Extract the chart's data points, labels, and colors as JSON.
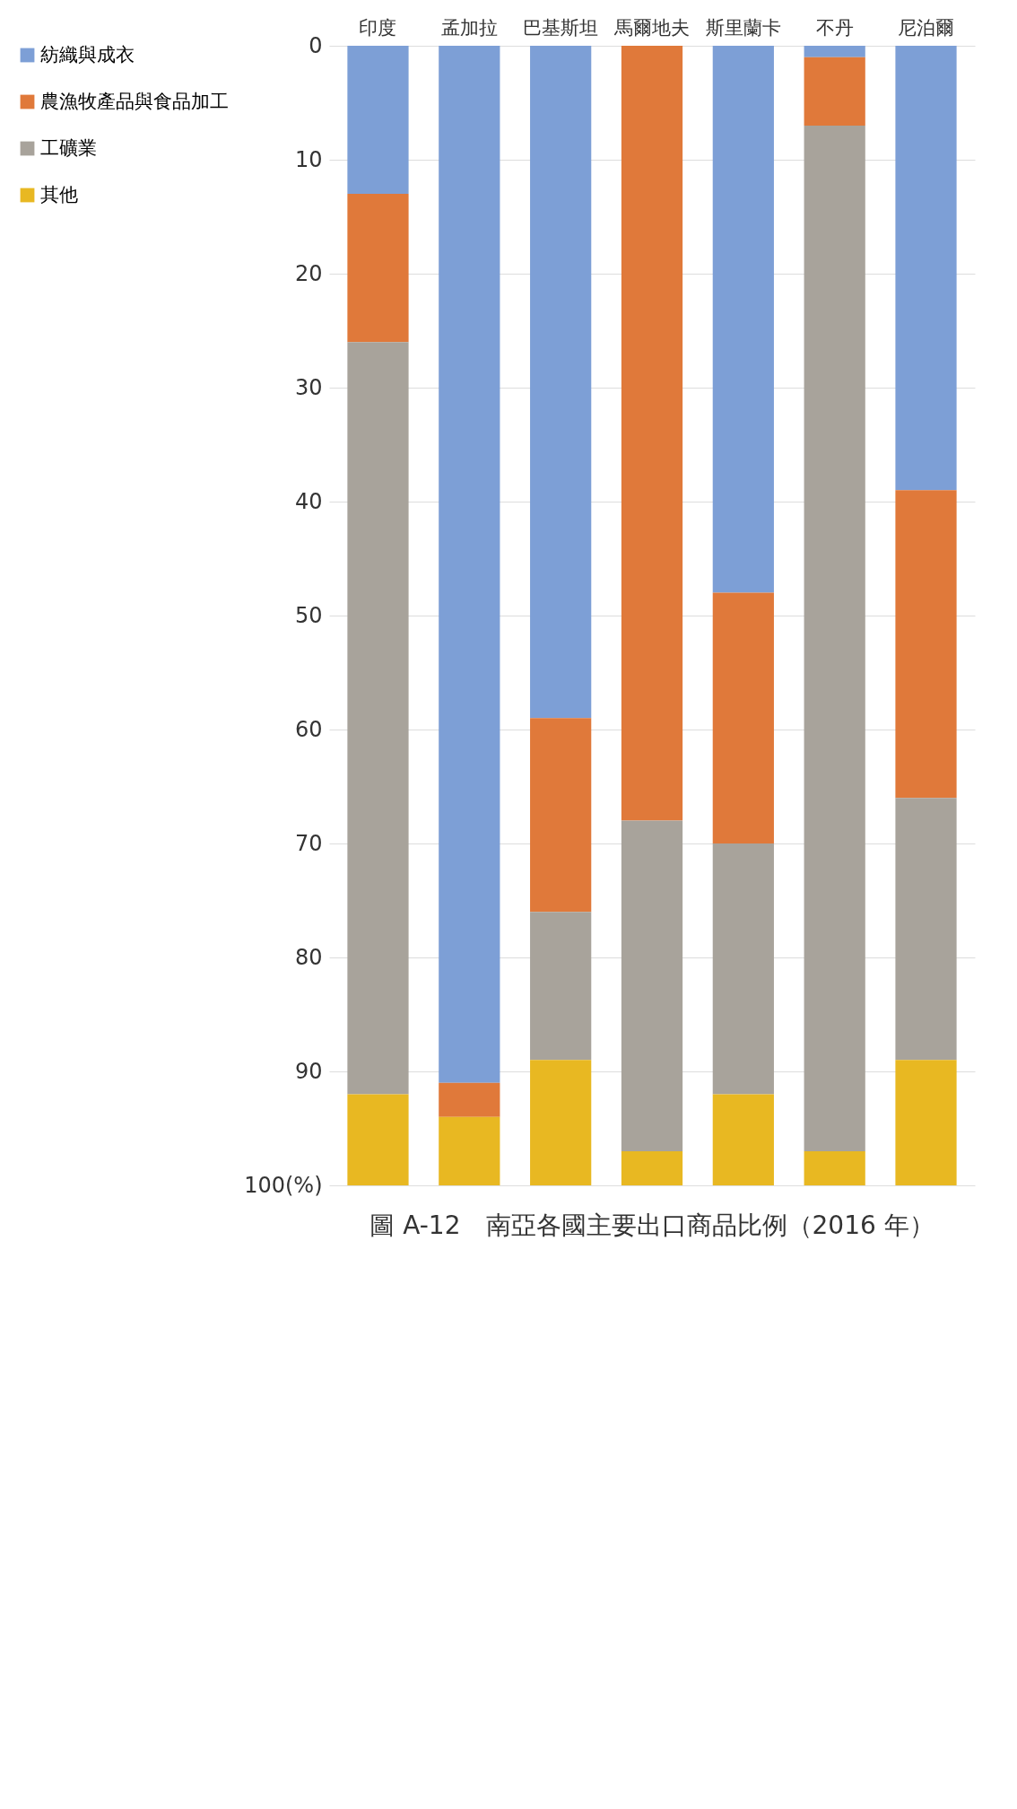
{
  "chart_data": {
    "type": "bar",
    "title": "圖 A-12　南亞各國主要出口商品比例（2016 年）",
    "categories": [
      "印度",
      "孟加拉",
      "巴基斯坦",
      "馬爾地夫",
      "斯里蘭卡",
      "不丹",
      "尼泊爾"
    ],
    "series": [
      {
        "name": "紡織與成衣",
        "color": "#7d9fd6",
        "values": [
          13,
          91,
          59,
          0,
          48,
          1,
          39
        ]
      },
      {
        "name": "農漁牧產品與食品加工",
        "color": "#e0793a",
        "values": [
          13,
          3,
          17,
          68,
          22,
          6,
          27
        ]
      },
      {
        "name": "工礦業",
        "color": "#a8a39b",
        "values": [
          66,
          0,
          13,
          29,
          22,
          90,
          23
        ]
      },
      {
        "name": "其他",
        "color": "#e8b822",
        "values": [
          8,
          6,
          11,
          3,
          8,
          3,
          11
        ]
      }
    ],
    "stacked": true,
    "ylim": [
      100,
      0
    ],
    "yticks": [
      0,
      10,
      20,
      30,
      40,
      50,
      60,
      70,
      80,
      90,
      {
        "value": 100,
        "label": "100(%)"
      }
    ],
    "grid": "y",
    "legend": "left"
  }
}
